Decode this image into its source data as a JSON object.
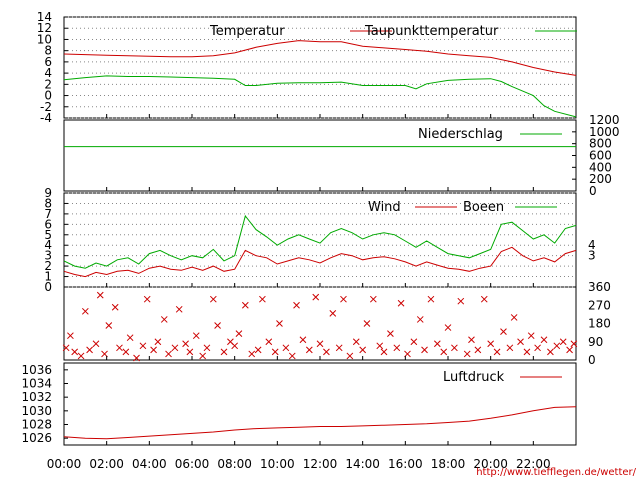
{
  "chart_data": [
    {
      "type": "line",
      "panel": "temperature",
      "x_unit": "hour",
      "xlim": [
        0,
        24
      ],
      "ylim": [
        -4,
        14
      ],
      "y_ticks": [
        -4,
        -2,
        0,
        2,
        4,
        6,
        8,
        10,
        12,
        14
      ],
      "grid": true,
      "legend_position": "top",
      "series": [
        {
          "name": "Temperatur",
          "color": "#cc0000",
          "points": [
            [
              0,
              7.4
            ],
            [
              1,
              7.3
            ],
            [
              2,
              7.2
            ],
            [
              3,
              7.1
            ],
            [
              4,
              7.0
            ],
            [
              5,
              6.9
            ],
            [
              6,
              6.9
            ],
            [
              7,
              7.1
            ],
            [
              8,
              7.6
            ],
            [
              9,
              8.6
            ],
            [
              10,
              9.3
            ],
            [
              11,
              9.8
            ],
            [
              12,
              9.6
            ],
            [
              13,
              9.6
            ],
            [
              14,
              8.8
            ],
            [
              15,
              8.5
            ],
            [
              16,
              8.2
            ],
            [
              17,
              7.9
            ],
            [
              18,
              7.4
            ],
            [
              19,
              7.1
            ],
            [
              20,
              6.8
            ],
            [
              21,
              6.0
            ],
            [
              22,
              5.0
            ],
            [
              23,
              4.2
            ],
            [
              24,
              3.6
            ]
          ]
        },
        {
          "name": "Taupunkttemperatur",
          "color": "#00aa00",
          "points": [
            [
              0,
              2.8
            ],
            [
              1,
              3.2
            ],
            [
              2,
              3.5
            ],
            [
              3,
              3.4
            ],
            [
              4,
              3.4
            ],
            [
              5,
              3.3
            ],
            [
              6,
              3.2
            ],
            [
              7,
              3.1
            ],
            [
              8,
              2.9
            ],
            [
              8.5,
              1.8
            ],
            [
              9,
              1.8
            ],
            [
              10,
              2.2
            ],
            [
              11,
              2.3
            ],
            [
              12,
              2.3
            ],
            [
              13,
              2.4
            ],
            [
              14,
              1.8
            ],
            [
              15,
              1.8
            ],
            [
              16,
              1.8
            ],
            [
              16.5,
              1.2
            ],
            [
              17,
              2.1
            ],
            [
              18,
              2.7
            ],
            [
              19,
              2.9
            ],
            [
              20,
              3.0
            ],
            [
              20.5,
              2.5
            ],
            [
              21,
              1.6
            ],
            [
              22,
              0.0
            ],
            [
              22.5,
              -1.8
            ],
            [
              23,
              -2.8
            ],
            [
              24,
              -3.8
            ]
          ]
        }
      ]
    },
    {
      "type": "line",
      "panel": "precipitation",
      "x_unit": "hour",
      "xlim": [
        0,
        24
      ],
      "ylim": [
        0,
        1200
      ],
      "y_ticks": [
        0,
        200,
        400,
        600,
        800,
        1000,
        1200
      ],
      "series": [
        {
          "name": "Niederschlag",
          "color": "#00aa00",
          "points": [
            [
              0,
              750
            ],
            [
              24,
              750
            ]
          ]
        }
      ]
    },
    {
      "type": "line",
      "panel": "wind",
      "x_unit": "hour",
      "xlim": [
        0,
        24
      ],
      "ylim": [
        0,
        9
      ],
      "y_ticks": [
        0,
        1,
        2,
        3,
        4,
        5,
        6,
        7,
        8,
        9
      ],
      "right_ticks": [
        3,
        4
      ],
      "grid": true,
      "legend_position": "top",
      "series": [
        {
          "name": "Wind",
          "color": "#cc0000",
          "points": [
            [
              0,
              1.5
            ],
            [
              0.5,
              1.2
            ],
            [
              1,
              1.0
            ],
            [
              1.5,
              1.4
            ],
            [
              2,
              1.2
            ],
            [
              2.5,
              1.5
            ],
            [
              3,
              1.6
            ],
            [
              3.5,
              1.3
            ],
            [
              4,
              1.8
            ],
            [
              4.5,
              2.0
            ],
            [
              5,
              1.7
            ],
            [
              5.5,
              1.6
            ],
            [
              6,
              1.9
            ],
            [
              6.5,
              1.6
            ],
            [
              7,
              2.0
            ],
            [
              7.5,
              1.5
            ],
            [
              8,
              1.7
            ],
            [
              8.5,
              3.5
            ],
            [
              9,
              3.0
            ],
            [
              9.5,
              2.8
            ],
            [
              10,
              2.2
            ],
            [
              10.5,
              2.5
            ],
            [
              11,
              2.8
            ],
            [
              11.5,
              2.6
            ],
            [
              12,
              2.3
            ],
            [
              12.5,
              2.8
            ],
            [
              13,
              3.2
            ],
            [
              13.5,
              3.0
            ],
            [
              14,
              2.6
            ],
            [
              14.5,
              2.8
            ],
            [
              15,
              2.9
            ],
            [
              15.5,
              2.7
            ],
            [
              16,
              2.4
            ],
            [
              16.5,
              2.0
            ],
            [
              17,
              2.4
            ],
            [
              17.5,
              2.1
            ],
            [
              18,
              1.8
            ],
            [
              18.5,
              1.7
            ],
            [
              19,
              1.5
            ],
            [
              19.5,
              1.8
            ],
            [
              20,
              2.0
            ],
            [
              20.5,
              3.4
            ],
            [
              21,
              3.8
            ],
            [
              21.5,
              3.0
            ],
            [
              22,
              2.5
            ],
            [
              22.5,
              2.8
            ],
            [
              23,
              2.4
            ],
            [
              23.5,
              3.2
            ],
            [
              24,
              3.5
            ]
          ]
        },
        {
          "name": "Boeen",
          "color": "#00aa00",
          "points": [
            [
              0,
              2.5
            ],
            [
              0.5,
              2.0
            ],
            [
              1,
              1.8
            ],
            [
              1.5,
              2.3
            ],
            [
              2,
              2.0
            ],
            [
              2.5,
              2.6
            ],
            [
              3,
              2.8
            ],
            [
              3.5,
              2.2
            ],
            [
              4,
              3.2
            ],
            [
              4.5,
              3.5
            ],
            [
              5,
              3.0
            ],
            [
              5.5,
              2.6
            ],
            [
              6,
              3.0
            ],
            [
              6.5,
              2.8
            ],
            [
              7,
              3.6
            ],
            [
              7.5,
              2.5
            ],
            [
              8,
              3.0
            ],
            [
              8.5,
              6.8
            ],
            [
              9,
              5.5
            ],
            [
              9.5,
              4.8
            ],
            [
              10,
              4.0
            ],
            [
              10.5,
              4.6
            ],
            [
              11,
              5.0
            ],
            [
              11.5,
              4.6
            ],
            [
              12,
              4.2
            ],
            [
              12.5,
              5.2
            ],
            [
              13,
              5.6
            ],
            [
              13.5,
              5.2
            ],
            [
              14,
              4.6
            ],
            [
              14.5,
              5.0
            ],
            [
              15,
              5.2
            ],
            [
              15.5,
              5.0
            ],
            [
              16,
              4.4
            ],
            [
              16.5,
              3.8
            ],
            [
              17,
              4.4
            ],
            [
              17.5,
              3.8
            ],
            [
              18,
              3.2
            ],
            [
              18.5,
              3.0
            ],
            [
              19,
              2.8
            ],
            [
              19.5,
              3.2
            ],
            [
              20,
              3.6
            ],
            [
              20.5,
              6.0
            ],
            [
              21,
              6.2
            ],
            [
              21.5,
              5.4
            ],
            [
              22,
              4.6
            ],
            [
              22.5,
              5.0
            ],
            [
              23,
              4.2
            ],
            [
              23.5,
              5.6
            ],
            [
              24,
              5.9
            ]
          ]
        }
      ]
    },
    {
      "type": "scatter",
      "panel": "wind-direction",
      "x_unit": "hour",
      "xlim": [
        0,
        24
      ],
      "ylim": [
        0,
        360
      ],
      "right_ticks": [
        0,
        90,
        180,
        270,
        360
      ],
      "marker": "x",
      "color": "#cc0000",
      "points": [
        [
          0.1,
          60
        ],
        [
          0.3,
          120
        ],
        [
          0.5,
          40
        ],
        [
          0.8,
          20
        ],
        [
          1.0,
          240
        ],
        [
          1.2,
          50
        ],
        [
          1.5,
          80
        ],
        [
          1.7,
          320
        ],
        [
          1.9,
          30
        ],
        [
          2.1,
          170
        ],
        [
          2.4,
          260
        ],
        [
          2.6,
          60
        ],
        [
          2.9,
          40
        ],
        [
          3.1,
          110
        ],
        [
          3.4,
          10
        ],
        [
          3.7,
          70
        ],
        [
          3.9,
          300
        ],
        [
          4.2,
          50
        ],
        [
          4.4,
          90
        ],
        [
          4.7,
          200
        ],
        [
          4.9,
          30
        ],
        [
          5.2,
          60
        ],
        [
          5.4,
          250
        ],
        [
          5.7,
          80
        ],
        [
          5.9,
          40
        ],
        [
          6.2,
          120
        ],
        [
          6.5,
          20
        ],
        [
          6.7,
          60
        ],
        [
          7.0,
          300
        ],
        [
          7.2,
          170
        ],
        [
          7.5,
          40
        ],
        [
          7.8,
          90
        ],
        [
          8.0,
          70
        ],
        [
          8.2,
          130
        ],
        [
          8.5,
          270
        ],
        [
          8.8,
          30
        ],
        [
          9.1,
          50
        ],
        [
          9.3,
          300
        ],
        [
          9.6,
          90
        ],
        [
          9.9,
          40
        ],
        [
          10.1,
          180
        ],
        [
          10.4,
          60
        ],
        [
          10.7,
          20
        ],
        [
          10.9,
          270
        ],
        [
          11.2,
          100
        ],
        [
          11.5,
          50
        ],
        [
          11.8,
          310
        ],
        [
          12.0,
          80
        ],
        [
          12.3,
          40
        ],
        [
          12.6,
          230
        ],
        [
          12.9,
          60
        ],
        [
          13.1,
          300
        ],
        [
          13.4,
          20
        ],
        [
          13.7,
          90
        ],
        [
          14.0,
          50
        ],
        [
          14.2,
          180
        ],
        [
          14.5,
          300
        ],
        [
          14.8,
          70
        ],
        [
          15.0,
          40
        ],
        [
          15.3,
          130
        ],
        [
          15.6,
          60
        ],
        [
          15.8,
          280
        ],
        [
          16.1,
          30
        ],
        [
          16.4,
          90
        ],
        [
          16.7,
          200
        ],
        [
          16.9,
          50
        ],
        [
          17.2,
          300
        ],
        [
          17.5,
          80
        ],
        [
          17.8,
          40
        ],
        [
          18.0,
          160
        ],
        [
          18.3,
          60
        ],
        [
          18.6,
          290
        ],
        [
          18.9,
          30
        ],
        [
          19.1,
          100
        ],
        [
          19.4,
          50
        ],
        [
          19.7,
          300
        ],
        [
          20.0,
          80
        ],
        [
          20.3,
          40
        ],
        [
          20.6,
          140
        ],
        [
          20.9,
          60
        ],
        [
          21.1,
          210
        ],
        [
          21.4,
          90
        ],
        [
          21.7,
          40
        ],
        [
          21.9,
          120
        ],
        [
          22.2,
          60
        ],
        [
          22.5,
          100
        ],
        [
          22.8,
          40
        ],
        [
          23.1,
          70
        ],
        [
          23.4,
          90
        ],
        [
          23.7,
          50
        ],
        [
          23.9,
          80
        ]
      ]
    },
    {
      "type": "line",
      "panel": "pressure",
      "x_unit": "hour",
      "xlim": [
        0,
        24
      ],
      "ylim": [
        1025,
        1037
      ],
      "y_ticks": [
        1026,
        1028,
        1030,
        1032,
        1034,
        1036
      ],
      "legend_position": "top-right",
      "series": [
        {
          "name": "Luftdruck",
          "color": "#cc0000",
          "points": [
            [
              0,
              1026.2
            ],
            [
              1,
              1026.0
            ],
            [
              2,
              1025.9
            ],
            [
              3,
              1026.1
            ],
            [
              4,
              1026.3
            ],
            [
              5,
              1026.5
            ],
            [
              6,
              1026.7
            ],
            [
              7,
              1026.9
            ],
            [
              8,
              1027.2
            ],
            [
              9,
              1027.4
            ],
            [
              10,
              1027.5
            ],
            [
              11,
              1027.6
            ],
            [
              12,
              1027.7
            ],
            [
              13,
              1027.7
            ],
            [
              14,
              1027.8
            ],
            [
              15,
              1027.9
            ],
            [
              16,
              1028.0
            ],
            [
              17,
              1028.1
            ],
            [
              18,
              1028.3
            ],
            [
              19,
              1028.5
            ],
            [
              20,
              1028.9
            ],
            [
              21,
              1029.4
            ],
            [
              22,
              1030.0
            ],
            [
              23,
              1030.5
            ],
            [
              24,
              1030.6
            ]
          ]
        }
      ]
    }
  ],
  "x_axis": {
    "tick_labels": [
      "00:00",
      "02:00",
      "04:00",
      "06:00",
      "08:00",
      "10:00",
      "12:00",
      "14:00",
      "16:00",
      "18:00",
      "20:00",
      "22:00"
    ],
    "hours": [
      0,
      2,
      4,
      6,
      8,
      10,
      12,
      14,
      16,
      18,
      20,
      22
    ]
  },
  "source_url": "http://www.tiefflegen.de/wetter/"
}
